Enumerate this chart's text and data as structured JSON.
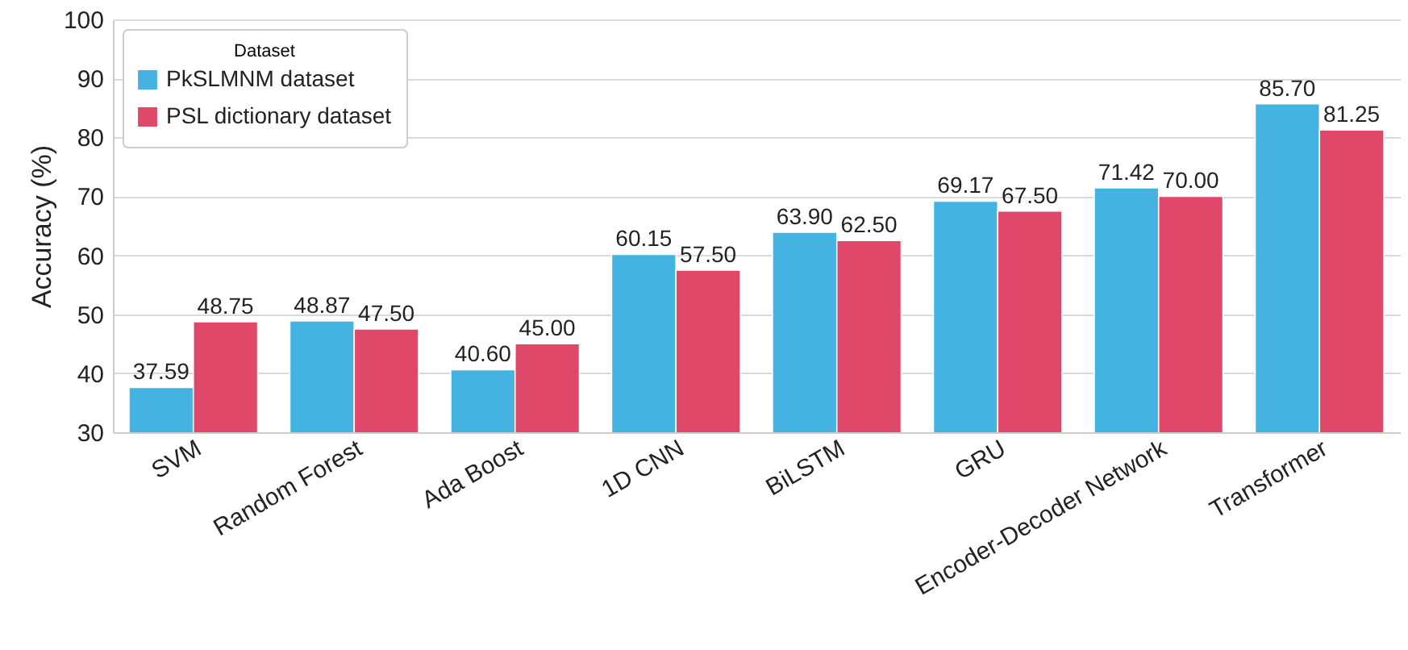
{
  "chart_data": {
    "type": "bar",
    "ylabel": "Accuracy (%)",
    "legend_title": "Dataset",
    "legend": "top left",
    "grid": "y",
    "categories": [
      "SVM",
      "Random Forest",
      "Ada Boost",
      "1D CNN",
      "BiLSTM",
      "GRU",
      "Encoder-Decoder Network",
      "Transformer"
    ],
    "ylim": [
      30,
      100
    ],
    "yticks": [
      30,
      40,
      50,
      60,
      70,
      80,
      90,
      100
    ],
    "series": [
      {
        "name": "PkSLMNM dataset",
        "color": "#45b3e1",
        "values": [
          37.59,
          48.87,
          40.6,
          60.15,
          63.9,
          69.17,
          71.42,
          85.7
        ],
        "value_labels": [
          "37.59",
          "48.87",
          "40.60",
          "60.15",
          "63.90",
          "69.17",
          "71.42",
          "85.70"
        ]
      },
      {
        "name": "PSL dictionary dataset",
        "color": "#e0486a",
        "values": [
          48.75,
          47.5,
          45.0,
          57.5,
          62.5,
          67.5,
          70.0,
          81.25
        ],
        "value_labels": [
          "48.75",
          "47.50",
          "45.00",
          "57.50",
          "62.50",
          "67.50",
          "70.00",
          "81.25"
        ]
      }
    ]
  }
}
